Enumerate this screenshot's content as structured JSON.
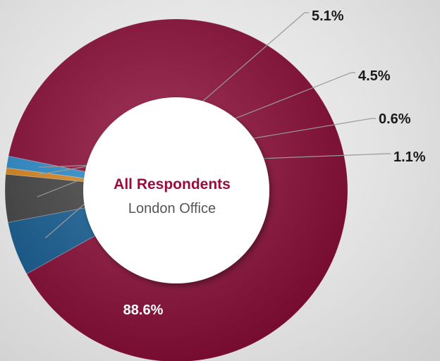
{
  "chart_data": {
    "type": "pie",
    "style": "donut",
    "center": {
      "title": "All Respondents",
      "subtitle": "London Office",
      "title_color": "#9a0c3c",
      "subtitle_color": "#555555"
    },
    "slices": [
      {
        "value": 88.6,
        "label": "88.6%",
        "color": "#8c0b37"
      },
      {
        "value": 5.1,
        "label": "5.1%",
        "color": "#155f96"
      },
      {
        "value": 4.5,
        "label": "4.5%",
        "color": "#454545"
      },
      {
        "value": 0.6,
        "label": "0.6%",
        "color": "#e08a1e"
      },
      {
        "value": 1.1,
        "label": "1.1%",
        "color": "#2b8fd0"
      }
    ],
    "legend": "none"
  }
}
